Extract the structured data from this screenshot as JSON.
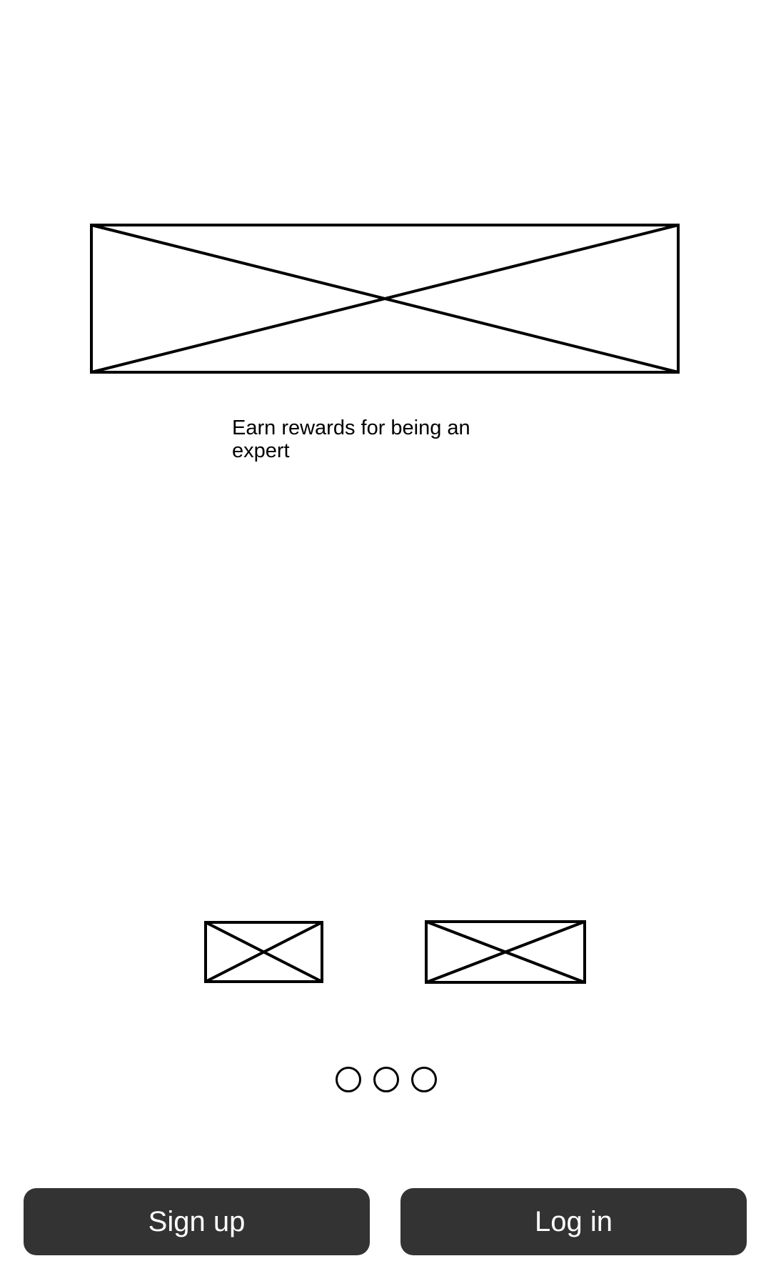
{
  "onboarding": {
    "tagline": "Earn rewards for being an expert",
    "pager_pages": 3
  },
  "actions": {
    "signup_label": "Sign up",
    "login_label": "Log in"
  },
  "colors": {
    "background": "#ffffff",
    "button_bg": "#333333",
    "button_text": "#ffffff",
    "wireframe_stroke": "#000000"
  }
}
